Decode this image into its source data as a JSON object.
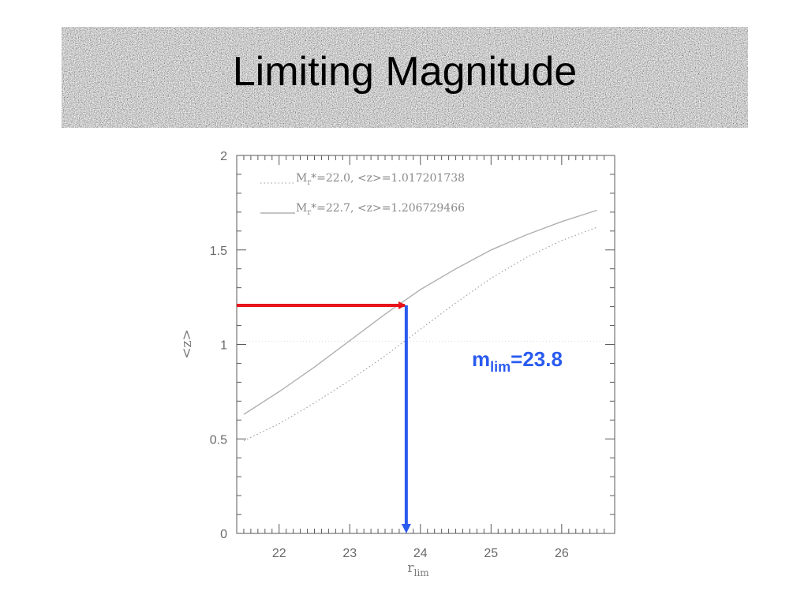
{
  "slide": {
    "title": "Limiting Magnitude"
  },
  "chart_data": {
    "type": "line",
    "xlabel": "r",
    "xlabel_subscript": "lim",
    "ylabel": "<z>",
    "xlim": [
      21.4,
      26.75
    ],
    "ylim": [
      0,
      2
    ],
    "x_ticks": [
      22,
      23,
      24,
      25,
      26
    ],
    "y_ticks": [
      0,
      0.5,
      1,
      1.5,
      2
    ],
    "y_tick_labels": [
      "0",
      "0.5",
      "1",
      "1.5",
      "2"
    ],
    "grid": false,
    "legend": [
      {
        "label_main": "M",
        "label_sub": "r",
        "label_rest": "*=22.0,  <z>=1.017201738",
        "style": "dotted"
      },
      {
        "label_main": "M",
        "label_sub": "r",
        "label_rest": "*=22.7,  <z>=1.206729466",
        "style": "solid"
      }
    ],
    "series": [
      {
        "style": "dotted",
        "x": [
          21.5,
          22,
          22.5,
          23,
          23.5,
          24,
          24.5,
          25,
          25.5,
          26,
          26.5
        ],
        "y": [
          0.49,
          0.58,
          0.69,
          0.81,
          0.94,
          1.08,
          1.22,
          1.35,
          1.46,
          1.55,
          1.62
        ]
      },
      {
        "style": "solid",
        "x": [
          21.5,
          22,
          22.5,
          23,
          23.5,
          24,
          24.5,
          25,
          25.5,
          26,
          26.5
        ],
        "y": [
          0.63,
          0.75,
          0.88,
          1.02,
          1.16,
          1.29,
          1.4,
          1.5,
          1.58,
          1.65,
          1.71
        ]
      }
    ],
    "reference_line": {
      "y": 1.017201738,
      "style": "faint-dotted"
    },
    "annotation": {
      "horizontal_arrow": {
        "from_x": 21.4,
        "to_x": 23.8,
        "y": 1.2067,
        "color": "#e8141b"
      },
      "vertical_arrow": {
        "x": 23.8,
        "from_y": 1.2067,
        "to_y": 0,
        "color": "#2a5bf0"
      },
      "label_main": "m",
      "label_sub": "lim",
      "label_rest": "=23.8",
      "color": "#2a5bf0"
    }
  }
}
